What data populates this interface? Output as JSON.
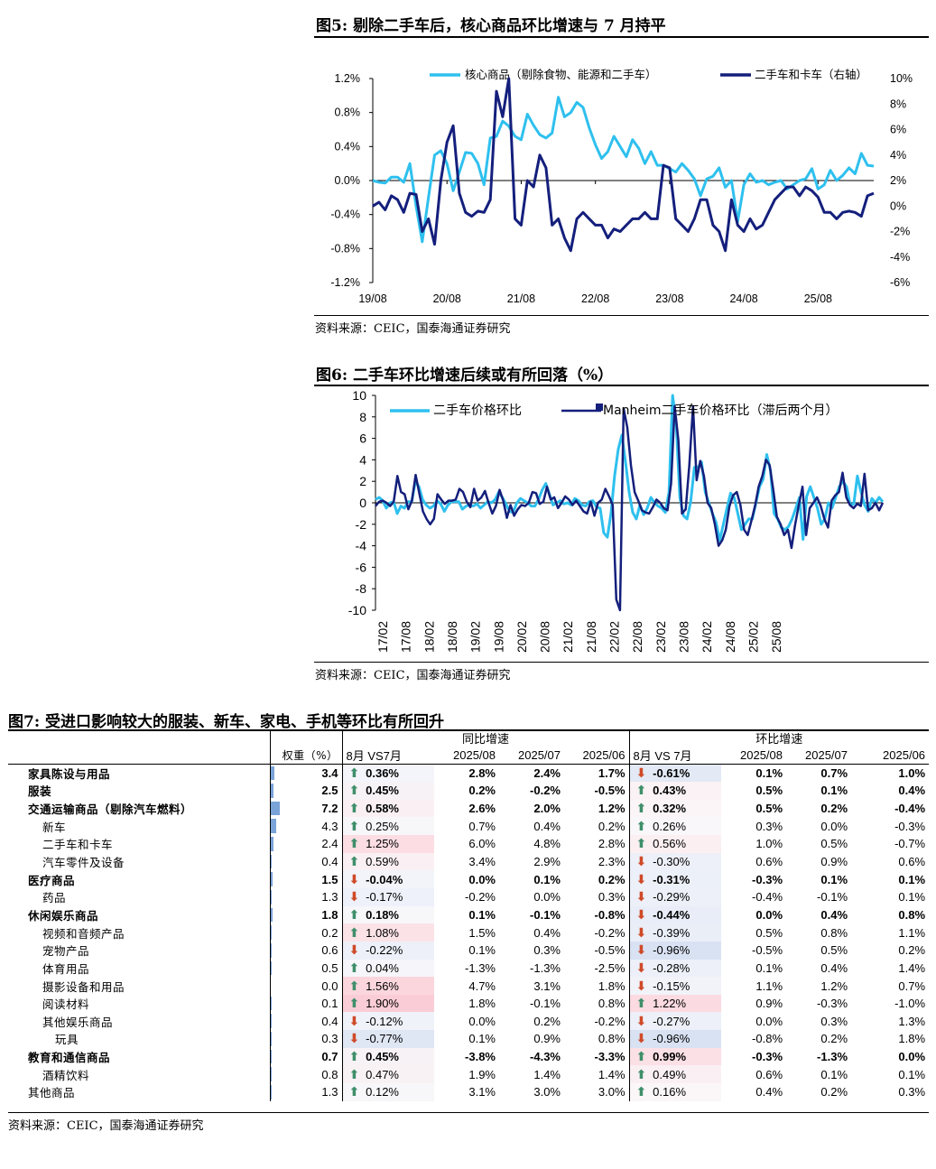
{
  "fig5": {
    "title": "图5: 剔除二手车后，核心商品环比增速与 7 月持平",
    "source": "资料来源：CEIC，国泰海通证券研究",
    "legend": [
      "核心商品（剔除食物、能源和二手车）",
      "二手车和卡车（右轴）"
    ],
    "colors": {
      "core": "#2ec0ee",
      "used": "#141f7c"
    },
    "y_left_ticks": [
      "1.2%",
      "0.8%",
      "0.4%",
      "0.0%",
      "-0.4%",
      "-0.8%",
      "-1.2%"
    ],
    "y_right_ticks": [
      "10%",
      "8%",
      "6%",
      "4%",
      "2%",
      "0%",
      "-2%",
      "-4%",
      "-6%"
    ],
    "x_ticks": [
      "19/08",
      "20/08",
      "21/08",
      "22/08",
      "23/08",
      "24/08",
      "25/08"
    ]
  },
  "fig6": {
    "title": "图6: 二手车环比增速后续或有所回落（%）",
    "source": "资料来源：CEIC，国泰海通证券研究",
    "legend": [
      "二手车价格环比",
      "Manheim二手车价格环比（滞后两个月）"
    ],
    "colors": {
      "cpi": "#2ec0ee",
      "manheim": "#141f7c"
    },
    "y_ticks": [
      "10",
      "8",
      "6",
      "4",
      "2",
      "0",
      "-2",
      "-4",
      "-6",
      "-8",
      "-10"
    ],
    "x_ticks": [
      "17/02",
      "17/08",
      "18/02",
      "18/08",
      "19/02",
      "19/08",
      "20/02",
      "20/08",
      "21/02",
      "21/08",
      "22/02",
      "22/08",
      "23/02",
      "23/08",
      "24/02",
      "24/08",
      "25/02",
      "25/08"
    ]
  },
  "chart_data": [
    {
      "type": "line",
      "title": "剔除二手车后，核心商品环比增速与 7 月持平",
      "x_start": "2019-08",
      "x_end": "2025-08",
      "ylim_left": [
        -1.2,
        1.2
      ],
      "ylim_right": [
        -6,
        10
      ],
      "series": [
        {
          "name": "核心商品（剔除食物、能源和二手车）",
          "axis": "left",
          "values": [
            0.0,
            -0.02,
            -0.03,
            0.04,
            0.04,
            -0.02,
            0.2,
            -0.3,
            -0.72,
            -0.2,
            0.3,
            0.35,
            0.2,
            -0.12,
            0.1,
            0.33,
            0.32,
            0.2,
            -0.05,
            0.5,
            0.52,
            0.7,
            0.64,
            0.52,
            0.48,
            0.78,
            0.65,
            0.54,
            0.5,
            0.56,
            0.98,
            0.75,
            0.8,
            0.92,
            0.86,
            0.62,
            0.42,
            0.26,
            0.34,
            0.52,
            0.4,
            0.28,
            0.48,
            0.38,
            0.2,
            0.34,
            0.18,
            0.18,
            0.14,
            0.1,
            0.2,
            0.12,
            0.02,
            -0.18,
            0.02,
            0.05,
            0.15,
            -0.08,
            0.0,
            -0.48,
            -0.05,
            0.08,
            -0.02,
            0.0,
            -0.05,
            -0.02,
            0.0,
            -0.1,
            -0.05,
            0.0,
            0.02,
            0.14,
            -0.1,
            -0.05,
            0.12,
            0.0,
            0.06,
            0.15,
            0.08,
            0.32,
            0.18,
            0.17
          ]
        },
        {
          "name": "二手车和卡车（右轴）",
          "axis": "right",
          "values": [
            0.0,
            0.3,
            -0.3,
            0.8,
            0.5,
            -0.5,
            1.0,
            0.9,
            -2.0,
            -1.0,
            -3.0,
            2.0,
            5.0,
            6.3,
            1.0,
            -0.5,
            -0.8,
            -0.4,
            -0.5,
            0.5,
            9.0,
            7.0,
            10.0,
            -1.0,
            -1.5,
            2.0,
            1.5,
            4.0,
            3.0,
            -1.5,
            -1.0,
            -2.5,
            -3.5,
            -1.0,
            -0.5,
            -1.0,
            -1.5,
            -1.5,
            -2.5,
            -1.8,
            -2.0,
            -1.5,
            -1.0,
            -1.0,
            -0.5,
            -1.0,
            -1.0,
            3.2,
            3.0,
            -1.0,
            -1.5,
            -2.0,
            -1.0,
            0.5,
            0.5,
            -1.5,
            -2.0,
            -3.5,
            0.5,
            -1.5,
            -2.0,
            -1.0,
            -1.8,
            -1.5,
            -0.5,
            0.5,
            1.0,
            1.5,
            1.5,
            0.8,
            1.5,
            1.2,
            0.7,
            -0.5,
            -0.5,
            -1.0,
            -0.5,
            -0.4,
            -0.5,
            -0.8,
            0.8,
            1.0
          ]
        }
      ]
    },
    {
      "type": "line",
      "title": "二手车环比增速后续或有所回落（%）",
      "x_start": "2017-02",
      "x_end": "2025-08",
      "ylim": [
        -10,
        10
      ],
      "series": [
        {
          "name": "二手车价格环比",
          "values": [
            0.3,
            0.5,
            0.2,
            -0.5,
            0.0,
            0.1,
            -1.0,
            -0.3,
            -0.5,
            0.1,
            0.1,
            2.0,
            1.5,
            0.3,
            -0.2,
            -0.5,
            -0.3,
            0.2,
            -0.1,
            -0.8,
            -0.2,
            0.1,
            0.1,
            0.1,
            -0.6,
            -0.3,
            -0.2,
            -0.3,
            -0.1,
            -0.5,
            -0.2,
            0.1,
            0.0,
            0.3,
            1.0,
            0.5,
            -0.1,
            -0.8,
            -0.9,
            0.0,
            0.4,
            0.2,
            0.0,
            -0.3,
            -0.3,
            0.3,
            1.2,
            1.8,
            0.8,
            -0.2,
            0.0,
            0.2,
            -0.1,
            0.0,
            -0.2,
            0.4,
            0.2,
            -0.2,
            -0.3,
            0.1,
            0.2,
            -0.4,
            -0.5,
            -2.8,
            -3.2,
            -1.0,
            2.5,
            5.0,
            6.3,
            3.8,
            1.0,
            -0.9,
            -1.5,
            -0.2,
            -1.1,
            -0.5,
            0.5,
            0.0,
            -0.3,
            -0.5,
            -0.9,
            1.0,
            10.5,
            7.3,
            0.5,
            -1.2,
            -1.5,
            0.1,
            3.3,
            3.3,
            3.8,
            1.0,
            0.0,
            -1.0,
            -1.8,
            -3.5,
            -2.0,
            -0.5,
            0.9,
            0.5,
            -1.0,
            -2.5,
            -2.0,
            -1.5,
            -1.5,
            0.0,
            1.5,
            2.2,
            4.5,
            3.0,
            -1.0,
            -1.5,
            -2.3,
            -2.5,
            -2.2,
            -1.5,
            -0.5,
            0.5,
            -3.4,
            0.6,
            1.5,
            0.5,
            -0.5,
            -2.0,
            -1.5,
            0.0,
            -0.5,
            0.5,
            1.5,
            2.0,
            1.5,
            -0.2,
            -0.1,
            2.5,
            1.0,
            -0.2,
            -0.8,
            0.4,
            0.0,
            0.5,
            0.1
          ]
        },
        {
          "name": "Manheim二手车价格环比（滞后两个月）",
          "values": [
            -0.3,
            0.1,
            0.2,
            0.0,
            -0.3,
            0.1,
            2.5,
            1.0,
            0.8,
            -0.6,
            0.2,
            2.6,
            0.9,
            -0.8,
            -1.5,
            -2.0,
            -1.5,
            0.8,
            0.3,
            -0.1,
            0.2,
            0.2,
            0.3,
            1.3,
            1.0,
            0.1,
            -0.4,
            1.3,
            0.2,
            0.5,
            1.1,
            0.0,
            -1.0,
            -0.3,
            1.2,
            0.2,
            -1.4,
            -0.2,
            -1.2,
            -0.6,
            -0.2,
            -0.3,
            0.0,
            1.0,
            0.9,
            -0.1,
            0.1,
            1.5,
            0.3,
            0.5,
            -0.5,
            0.0,
            0.6,
            0.3,
            -0.2,
            0.2,
            -0.3,
            -0.8,
            -1.0,
            0.1,
            -1.2,
            0.0,
            0.3,
            1.3,
            0.6,
            -0.2,
            -9.0,
            -10.5,
            8.8,
            7.0,
            3.5,
            1.0,
            0.2,
            -0.7,
            -0.9,
            -1.0,
            -0.4,
            0.3,
            0.0,
            -0.5,
            -0.7,
            1.8,
            9.0,
            5.8,
            -1.0,
            -0.6,
            3.5,
            9.0,
            2.1,
            3.9,
            2.5,
            0.0,
            -0.5,
            -2.0,
            -4.0,
            -3.5,
            -2.5,
            -0.3,
            0.7,
            1.0,
            -0.2,
            -2.5,
            -3.0,
            -1.7,
            -0.3,
            1.5,
            2.5,
            4.0,
            3.5,
            1.2,
            -1.3,
            -2.0,
            -3.0,
            -2.5,
            -4.2,
            -2.0,
            -0.2,
            1.5,
            -3.0,
            -0.5,
            0.0,
            0.5,
            -0.3,
            -1.5,
            -2.3,
            0.2,
            0.7,
            1.0,
            2.8,
            0.5,
            -0.2,
            -0.5,
            -0.1,
            -0.3,
            2.7,
            -0.7,
            -0.5,
            0.0,
            -0.7,
            0.0
          ]
        }
      ]
    }
  ],
  "fig7": {
    "title": "图7: 受进口影响较大的服装、新车、家电、手机等环比有所回升",
    "source": "资料来源：CEIC，国泰海通证券研究",
    "group_yoy": "同比增速",
    "group_mom": "环比增速",
    "headers": [
      "权重（%）",
      "8月 VS7月",
      "2025/08",
      "2025/07",
      "2025/06",
      "8月 VS 7月",
      "2025/08",
      "2025/07",
      "2025/06"
    ],
    "rows": [
      {
        "name": "家具陈设与用品",
        "bold": true,
        "indent": 0,
        "w": "3.4",
        "w_val": 3.4,
        "yd": "up",
        "yv": "0.36%",
        "yoy": [
          "2.8%",
          "2.4%",
          "1.7%"
        ],
        "md": "down",
        "mv": "-0.61%",
        "mom": [
          "0.1%",
          "0.7%",
          "1.0%"
        ],
        "yc": "#f4f5fb",
        "mc": "#e3e9f5"
      },
      {
        "name": "服装",
        "bold": true,
        "indent": 0,
        "w": "2.5",
        "w_val": 2.5,
        "yd": "up",
        "yv": "0.45%",
        "yoy": [
          "0.2%",
          "-0.2%",
          "-0.5%"
        ],
        "md": "up",
        "mv": "0.43%",
        "mom": [
          "0.5%",
          "0.1%",
          "0.4%"
        ],
        "yc": "#f7f2f5",
        "mc": "#faf2f4"
      },
      {
        "name": "交通运输商品（剔除汽车燃料）",
        "bold": true,
        "indent": 0,
        "w": "7.2",
        "w_val": 7.2,
        "yd": "up",
        "yv": "0.58%",
        "yoy": [
          "2.6%",
          "2.0%",
          "1.2%"
        ],
        "md": "up",
        "mv": "0.32%",
        "mom": [
          "0.5%",
          "0.2%",
          "-0.4%"
        ],
        "yc": "#faf0f3",
        "mc": "#fbf5f7"
      },
      {
        "name": "新车",
        "bold": false,
        "indent": 1,
        "w": "4.3",
        "w_val": 4.3,
        "yd": "up",
        "yv": "0.25%",
        "yoy": [
          "0.7%",
          "0.4%",
          "0.2%"
        ],
        "md": "up",
        "mv": "0.26%",
        "mom": [
          "0.3%",
          "0.0%",
          "-0.3%"
        ],
        "yc": "#f7f7fa",
        "mc": "#f9f7f9"
      },
      {
        "name": "二手车和卡车",
        "bold": false,
        "indent": 1,
        "w": "2.4",
        "w_val": 2.4,
        "yd": "up",
        "yv": "1.25%",
        "yoy": [
          "6.0%",
          "4.8%",
          "2.8%"
        ],
        "md": "up",
        "mv": "0.56%",
        "mom": [
          "1.0%",
          "0.5%",
          "-0.7%"
        ],
        "yc": "#fbdde3",
        "mc": "#fbeff2"
      },
      {
        "name": "汽车零件及设备",
        "bold": false,
        "indent": 1,
        "w": "0.4",
        "w_val": 0.4,
        "yd": "up",
        "yv": "0.59%",
        "yoy": [
          "3.4%",
          "2.9%",
          "2.3%"
        ],
        "md": "down",
        "mv": "-0.30%",
        "mom": [
          "0.6%",
          "0.9%",
          "0.6%"
        ],
        "yc": "#faf0f3",
        "mc": "#edf0f8"
      },
      {
        "name": "医疗商品",
        "bold": true,
        "indent": 0,
        "w": "1.5",
        "w_val": 1.5,
        "yd": "down",
        "yv": "-0.04%",
        "yoy": [
          "0.0%",
          "0.1%",
          "0.2%"
        ],
        "md": "down",
        "mv": "-0.31%",
        "mom": [
          "-0.3%",
          "0.1%",
          "0.1%"
        ],
        "yc": "#f2f4fa",
        "mc": "#ecf0f8"
      },
      {
        "name": "药品",
        "bold": false,
        "indent": 1,
        "w": "1.3",
        "w_val": 1.3,
        "yd": "down",
        "yv": "-0.17%",
        "yoy": [
          "-0.2%",
          "0.0%",
          "0.3%"
        ],
        "md": "down",
        "mv": "-0.29%",
        "mom": [
          "-0.4%",
          "-0.1%",
          "0.1%"
        ],
        "yc": "#eef1f9",
        "mc": "#edf0f8"
      },
      {
        "name": "休闲娱乐商品",
        "bold": true,
        "indent": 0,
        "w": "1.8",
        "w_val": 1.8,
        "yd": "up",
        "yv": "0.18%",
        "yoy": [
          "0.1%",
          "-0.1%",
          "-0.8%"
        ],
        "md": "down",
        "mv": "-0.44%",
        "mom": [
          "0.0%",
          "0.4%",
          "0.8%"
        ],
        "yc": "#f7f7fa",
        "mc": "#e8edf7"
      },
      {
        "name": "视频和音频产品",
        "bold": false,
        "indent": 1,
        "w": "0.2",
        "w_val": 0.2,
        "yd": "up",
        "yv": "1.08%",
        "yoy": [
          "1.5%",
          "0.4%",
          "-0.2%"
        ],
        "md": "down",
        "mv": "-0.39%",
        "mom": [
          "0.5%",
          "0.8%",
          "1.1%"
        ],
        "yc": "#fbe2e7",
        "mc": "#eaeef7"
      },
      {
        "name": "宠物产品",
        "bold": false,
        "indent": 1,
        "w": "0.6",
        "w_val": 0.6,
        "yd": "down",
        "yv": "-0.22%",
        "yoy": [
          "0.1%",
          "0.3%",
          "-0.5%"
        ],
        "md": "down",
        "mv": "-0.96%",
        "mom": [
          "-0.5%",
          "0.5%",
          "0.2%"
        ],
        "yc": "#edf0f8",
        "mc": "#d9e2f3"
      },
      {
        "name": "体育用品",
        "bold": false,
        "indent": 1,
        "w": "0.5",
        "w_val": 0.5,
        "yd": "up",
        "yv": "0.04%",
        "yoy": [
          "-1.3%",
          "-1.3%",
          "-2.5%"
        ],
        "md": "down",
        "mv": "-0.28%",
        "mom": [
          "0.1%",
          "0.4%",
          "1.4%"
        ],
        "yc": "#f6f6fa",
        "mc": "#edf0f8"
      },
      {
        "name": "摄影设备和用品",
        "bold": false,
        "indent": 1,
        "w": "0.0",
        "w_val": 0.0,
        "yd": "up",
        "yv": "1.56%",
        "yoy": [
          "4.7%",
          "3.1%",
          "1.8%"
        ],
        "md": "down",
        "mv": "-0.15%",
        "mom": [
          "1.1%",
          "1.2%",
          "0.7%"
        ],
        "yc": "#fbd6dd",
        "mc": "#f1f3f9"
      },
      {
        "name": "阅读材料",
        "bold": false,
        "indent": 1,
        "w": "0.1",
        "w_val": 0.1,
        "yd": "up",
        "yv": "1.90%",
        "yoy": [
          "1.8%",
          "-0.1%",
          "0.8%"
        ],
        "md": "up",
        "mv": "1.22%",
        "mom": [
          "0.9%",
          "-0.3%",
          "-1.0%"
        ],
        "yc": "#facdd6",
        "mc": "#fbdbe1"
      },
      {
        "name": "其他娱乐商品",
        "bold": false,
        "indent": 1,
        "w": "0.4",
        "w_val": 0.4,
        "yd": "down",
        "yv": "-0.12%",
        "yoy": [
          "0.0%",
          "0.2%",
          "-0.2%"
        ],
        "md": "down",
        "mv": "-0.27%",
        "mom": [
          "0.0%",
          "0.3%",
          "1.3%"
        ],
        "yc": "#f0f2f9",
        "mc": "#edf0f8"
      },
      {
        "name": "玩具",
        "bold": false,
        "indent": 2,
        "w": "0.3",
        "w_val": 0.3,
        "yd": "down",
        "yv": "-0.77%",
        "yoy": [
          "0.1%",
          "0.9%",
          "0.8%"
        ],
        "md": "down",
        "mv": "-0.96%",
        "mom": [
          "-0.8%",
          "0.2%",
          "1.8%"
        ],
        "yc": "#dfe6f4",
        "mc": "#d9e2f3"
      },
      {
        "name": "教育和通信商品",
        "bold": true,
        "indent": 0,
        "w": "0.7",
        "w_val": 0.7,
        "yd": "up",
        "yv": "0.45%",
        "yoy": [
          "-3.8%",
          "-4.3%",
          "-3.3%"
        ],
        "md": "up",
        "mv": "0.99%",
        "mom": [
          "-0.3%",
          "-1.3%",
          "0.0%"
        ],
        "yc": "#f7f2f5",
        "mc": "#fbe0e6"
      },
      {
        "name": "酒精饮料",
        "bold": false,
        "indent": 1,
        "w": "0.8",
        "w_val": 0.8,
        "yd": "up",
        "yv": "0.47%",
        "yoy": [
          "1.9%",
          "1.4%",
          "1.4%"
        ],
        "md": "up",
        "mv": "0.49%",
        "mom": [
          "0.6%",
          "0.1%",
          "0.1%"
        ],
        "yc": "#f8f2f5",
        "mc": "#faf0f3"
      },
      {
        "name": "其他商品",
        "bold": false,
        "indent": 0,
        "w": "1.3",
        "w_val": 1.3,
        "yd": "up",
        "yv": "0.12%",
        "yoy": [
          "3.1%",
          "3.0%",
          "3.0%"
        ],
        "md": "up",
        "mv": "0.16%",
        "mom": [
          "0.4%",
          "0.2%",
          "0.3%"
        ],
        "yc": "#f7f7fa",
        "mc": "#fbf7f8"
      }
    ]
  }
}
